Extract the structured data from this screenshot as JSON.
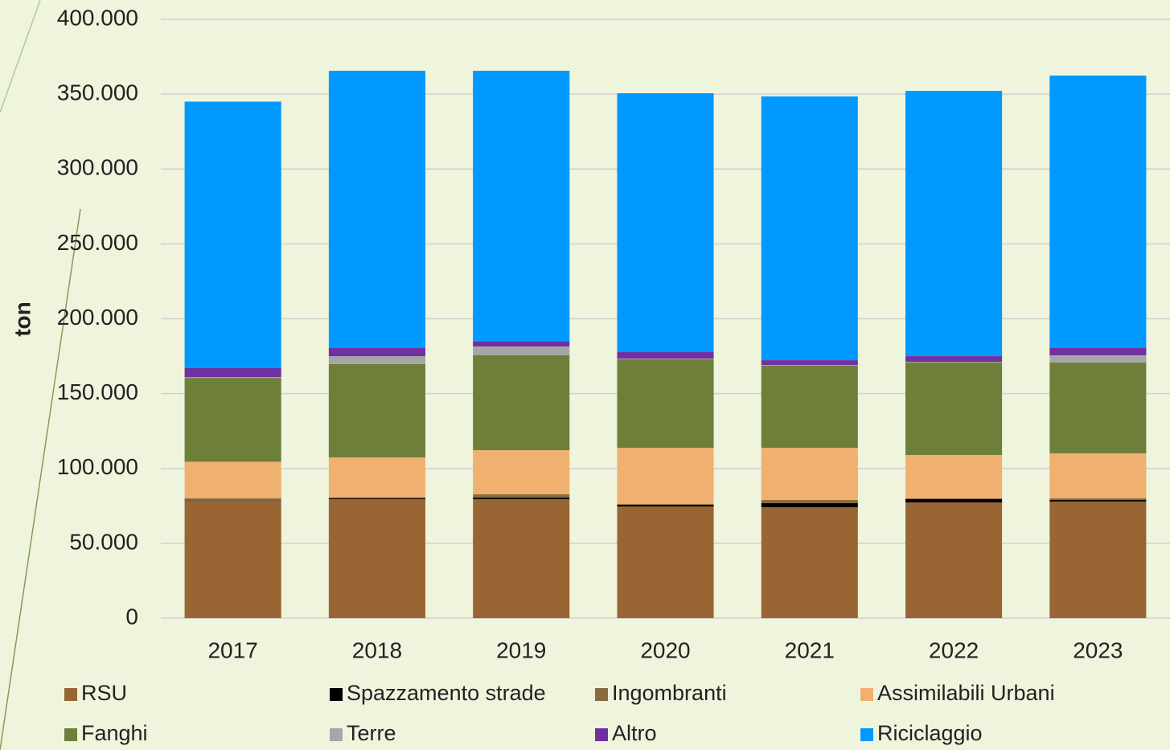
{
  "chart_data": {
    "type": "stacked_bar",
    "y_label": "ton",
    "categories": [
      "2017",
      "2018",
      "2019",
      "2020",
      "2021",
      "2022",
      "2023"
    ],
    "series": [
      {
        "name": "RSU",
        "color": "#996633",
        "values": [
          78500,
          79500,
          79500,
          74600,
          74100,
          77300,
          77900
        ]
      },
      {
        "name": "Spazzamento strade",
        "color": "#000000",
        "values": [
          300,
          700,
          1000,
          1100,
          2700,
          2200,
          1000
        ]
      },
      {
        "name": "Ingombranti",
        "color": "#8b6b3d",
        "values": [
          1200,
          500,
          2200,
          500,
          2100,
          500,
          1100
        ]
      },
      {
        "name": "Assimilabili Urbani",
        "color": "#f0b070",
        "values": [
          24500,
          26700,
          29500,
          37600,
          34900,
          29000,
          30100
        ]
      },
      {
        "name": "Fanghi",
        "color": "#6e7f3a",
        "values": [
          56000,
          62300,
          63400,
          59100,
          54800,
          61700,
          60600
        ]
      },
      {
        "name": "Terre",
        "color": "#a6a6a6",
        "values": [
          500,
          5300,
          5900,
          500,
          500,
          500,
          4900
        ]
      },
      {
        "name": "Altro",
        "color": "#7030a0",
        "values": [
          6000,
          5400,
          3200,
          4300,
          3200,
          3800,
          4800
        ]
      },
      {
        "name": "Riciclaggio",
        "color": "#0099ff",
        "values": [
          178000,
          185200,
          180900,
          172900,
          176200,
          177200,
          182000
        ]
      }
    ],
    "ylim": [
      0,
      400000
    ],
    "yticks": [
      0,
      {
        "value": 50000,
        "label": "50.000"
      },
      {
        "value": 100000,
        "label": "100.000"
      },
      {
        "value": 150000,
        "label": "150.000"
      },
      {
        "value": 200000,
        "label": "200.000"
      },
      {
        "value": 250000,
        "label": "250.000"
      },
      {
        "value": 300000,
        "label": "300.000"
      },
      {
        "value": 350000,
        "label": "350.000"
      },
      {
        "value": 400000,
        "label": "400.000"
      }
    ],
    "grid": true,
    "legend": "bottom"
  }
}
